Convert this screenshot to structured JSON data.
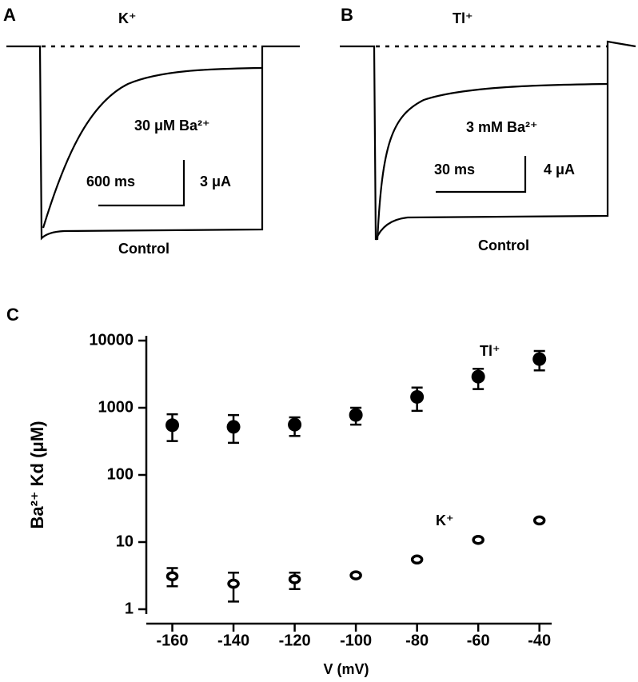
{
  "panels": [
    {
      "letter": "A",
      "ion": "K⁺",
      "treatment": "30 μM Ba²⁺",
      "time_scale": "600 ms",
      "current_scale": "3 μA",
      "control": "Control"
    },
    {
      "letter": "B",
      "ion": "Tl⁺",
      "treatment": "3 mM Ba²⁺",
      "time_scale": "30 ms",
      "current_scale": "4 μA",
      "control": "Control"
    }
  ],
  "chart_data": {
    "type": "scatter",
    "panel": "C",
    "x_label": "V (mV)",
    "y_label": "Ba²⁺ Kd (μM)",
    "x": [
      -160,
      -140,
      -120,
      -100,
      -80,
      -60,
      -40
    ],
    "xlim": [
      -168.5,
      -36
    ],
    "xticks": [
      -160,
      -140,
      -120,
      -100,
      -80,
      -60,
      -40
    ],
    "ylim": [
      1,
      10000
    ],
    "yticks": [
      1,
      10,
      100,
      1000,
      10000
    ],
    "log_y": true,
    "series": [
      {
        "name": "Tl⁺",
        "marker": "filled",
        "color": "#000000",
        "values": [
          550,
          520,
          560,
          780,
          1450,
          2900,
          5300
        ],
        "lower": [
          320,
          300,
          380,
          560,
          900,
          1900,
          3600
        ],
        "upper": [
          800,
          780,
          720,
          1000,
          2000,
          3800,
          7000
        ]
      },
      {
        "name": "K⁺",
        "marker": "open",
        "color": "#000000",
        "values": [
          3.1,
          2.4,
          2.8,
          3.2,
          5.5,
          10.8,
          21
        ],
        "lower": [
          2.2,
          1.3,
          2.0,
          null,
          null,
          null,
          null
        ],
        "upper": [
          4.1,
          3.5,
          3.5,
          null,
          null,
          null,
          null
        ]
      }
    ]
  }
}
